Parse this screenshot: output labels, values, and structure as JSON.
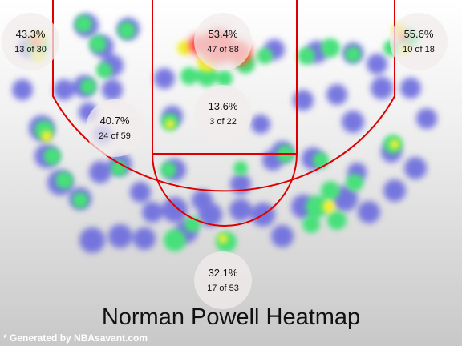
{
  "title": "Norman Powell Heatmap",
  "credit": "* Generated by NBAsavant.com",
  "zones": [
    {
      "pct": "43.3%",
      "count": "13 of 30"
    },
    {
      "pct": "53.4%",
      "count": "47 of 88"
    },
    {
      "pct": "55.6%",
      "count": "10 of 18"
    },
    {
      "pct": "40.7%",
      "count": "24 of 59"
    },
    {
      "pct": "13.6%",
      "count": "3 of 22"
    },
    {
      "pct": "32.1%",
      "count": "17 of 53"
    }
  ],
  "colors": {
    "court_line": "#dd0000",
    "cold": "#6b6bde",
    "cool": "#46e07a",
    "warm": "#f2f030",
    "hot": "#ff2a2a"
  }
}
